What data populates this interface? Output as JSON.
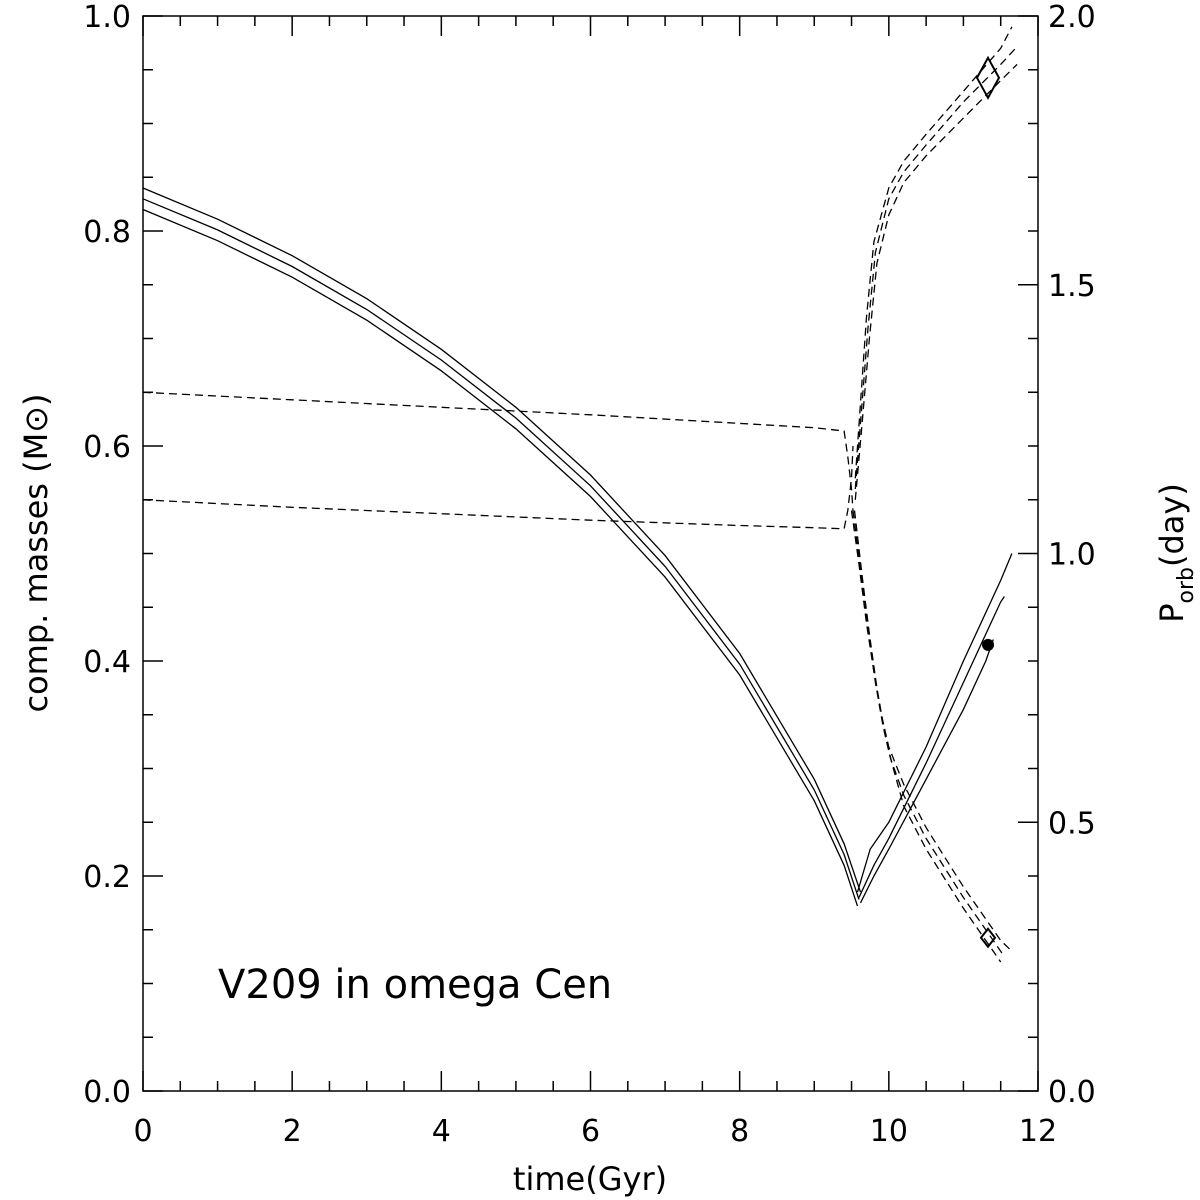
{
  "chart_data": {
    "type": "line",
    "title": "",
    "annotation": "V209 in omega Cen",
    "xlabel": "time(Gyr)",
    "ylabel_left": "comp. masses (M⊙)",
    "ylabel_right_main": "P",
    "ylabel_right_sub": "orb",
    "ylabel_right_tail": "(day)",
    "xlim": [
      0,
      12
    ],
    "ylim_left": [
      0,
      1
    ],
    "ylim_right": [
      0,
      2
    ],
    "x_ticks": [
      "0",
      "2",
      "4",
      "6",
      "8",
      "10",
      "12"
    ],
    "y_left_ticks": [
      "0.0",
      "0.2",
      "0.4",
      "0.6",
      "0.8",
      "1.0"
    ],
    "y_right_ticks": [
      "0.0",
      "0.5",
      "1.0",
      "1.5",
      "2.0"
    ],
    "series": [
      {
        "name": "donor mass (upper)",
        "style": "solid",
        "axis": "left",
        "x": [
          0,
          1,
          2,
          3,
          4,
          5,
          6,
          7,
          8,
          9,
          9.4,
          9.62
        ],
        "y": [
          0.84,
          0.811,
          0.777,
          0.737,
          0.69,
          0.636,
          0.573,
          0.498,
          0.407,
          0.29,
          0.23,
          0.185
        ]
      },
      {
        "name": "donor mass (middle)",
        "style": "solid",
        "axis": "left",
        "x": [
          0,
          1,
          2,
          3,
          4,
          5,
          6,
          7,
          8,
          9,
          9.4,
          9.6
        ],
        "y": [
          0.83,
          0.801,
          0.767,
          0.727,
          0.68,
          0.626,
          0.563,
          0.488,
          0.397,
          0.28,
          0.22,
          0.178
        ]
      },
      {
        "name": "donor mass (lower)",
        "style": "solid",
        "axis": "left",
        "x": [
          0,
          1,
          2,
          3,
          4,
          5,
          6,
          7,
          8,
          9,
          9.4,
          9.58
        ],
        "y": [
          0.82,
          0.791,
          0.757,
          0.717,
          0.67,
          0.616,
          0.553,
          0.478,
          0.387,
          0.27,
          0.21,
          0.172
        ]
      },
      {
        "name": "accretor mass (upper)",
        "style": "solid",
        "axis": "left",
        "x": [
          9.58,
          9.75,
          10,
          10.5,
          11,
          11.5,
          11.65
        ],
        "y": [
          0.185,
          0.225,
          0.25,
          0.32,
          0.4,
          0.475,
          0.5
        ]
      },
      {
        "name": "accretor mass (middle)",
        "style": "solid",
        "axis": "left",
        "x": [
          9.6,
          9.8,
          10,
          10.5,
          11,
          11.5,
          11.55
        ],
        "y": [
          0.18,
          0.21,
          0.235,
          0.305,
          0.38,
          0.455,
          0.46
        ]
      },
      {
        "name": "accretor mass (lower)",
        "style": "solid",
        "axis": "left",
        "x": [
          9.62,
          9.8,
          10,
          10.5,
          11,
          11.3,
          11.4
        ],
        "y": [
          0.175,
          0.2,
          0.225,
          0.29,
          0.355,
          0.4,
          0.42
        ]
      },
      {
        "name": "component mass 0.65",
        "style": "dashed",
        "axis": "left",
        "x": [
          0,
          2,
          4,
          6,
          8,
          9,
          9.4,
          9.45,
          9.5,
          9.52
        ],
        "y": [
          0.65,
          0.643,
          0.636,
          0.629,
          0.621,
          0.617,
          0.614,
          0.59,
          0.56,
          0.54
        ]
      },
      {
        "name": "component mass 0.55",
        "style": "dashed",
        "axis": "left",
        "x": [
          0,
          2,
          4,
          6,
          8,
          9,
          9.4,
          9.45,
          9.5,
          9.52
        ],
        "y": [
          0.55,
          0.543,
          0.537,
          0.531,
          0.526,
          0.524,
          0.523,
          0.54,
          0.57,
          0.6
        ]
      },
      {
        "name": "P_orb long (a)",
        "style": "dashed",
        "axis": "right",
        "x": [
          9.55,
          9.62,
          9.7,
          9.8,
          10,
          10.2,
          10.5,
          11,
          11.5,
          11.65
        ],
        "y": [
          1.14,
          1.28,
          1.44,
          1.58,
          1.68,
          1.73,
          1.78,
          1.86,
          1.94,
          1.98
        ]
      },
      {
        "name": "P_orb long (b)",
        "style": "dashed",
        "axis": "right",
        "x": [
          9.55,
          9.63,
          9.72,
          9.82,
          10,
          10.2,
          10.5,
          11,
          11.5,
          11.7
        ],
        "y": [
          1.12,
          1.26,
          1.42,
          1.56,
          1.66,
          1.71,
          1.76,
          1.84,
          1.91,
          1.94
        ]
      },
      {
        "name": "P_orb long (c)",
        "style": "dashed",
        "axis": "right",
        "x": [
          9.55,
          9.64,
          9.74,
          9.84,
          10,
          10.2,
          10.5,
          11,
          11.5,
          11.72
        ],
        "y": [
          1.1,
          1.24,
          1.4,
          1.54,
          1.63,
          1.69,
          1.74,
          1.81,
          1.88,
          1.91
        ]
      },
      {
        "name": "P_orb short (a)",
        "style": "dashed",
        "axis": "right",
        "x": [
          9.5,
          9.6,
          9.7,
          9.8,
          9.9,
          10,
          10.2,
          10.5,
          11,
          11.5,
          11.65
        ],
        "y": [
          1.08,
          0.98,
          0.87,
          0.78,
          0.7,
          0.64,
          0.57,
          0.49,
          0.38,
          0.28,
          0.26
        ]
      },
      {
        "name": "P_orb short (b)",
        "style": "dashed",
        "axis": "right",
        "x": [
          9.52,
          9.62,
          9.72,
          9.82,
          9.92,
          10.02,
          10.2,
          10.5,
          11,
          11.45,
          11.55
        ],
        "y": [
          1.08,
          0.97,
          0.86,
          0.76,
          0.68,
          0.62,
          0.55,
          0.47,
          0.36,
          0.27,
          0.25
        ]
      },
      {
        "name": "P_orb short (c)",
        "style": "dashed",
        "axis": "right",
        "x": [
          9.54,
          9.64,
          9.74,
          9.84,
          9.94,
          10.04,
          10.2,
          10.5,
          11,
          11.4,
          11.5
        ],
        "y": [
          1.08,
          0.96,
          0.85,
          0.75,
          0.67,
          0.61,
          0.53,
          0.45,
          0.34,
          0.26,
          0.24
        ]
      }
    ],
    "markers": [
      {
        "name": "observed mass (filled circle)",
        "shape": "circle",
        "axis": "left",
        "x": 11.33,
        "y": 0.415
      },
      {
        "name": "observed period (large diamond)",
        "shape": "diamond",
        "axis": "right",
        "x": 11.33,
        "y": 1.885
      },
      {
        "name": "observed period (small diamond)",
        "shape": "diamond",
        "axis": "right",
        "x": 11.33,
        "y": 0.285
      }
    ]
  }
}
